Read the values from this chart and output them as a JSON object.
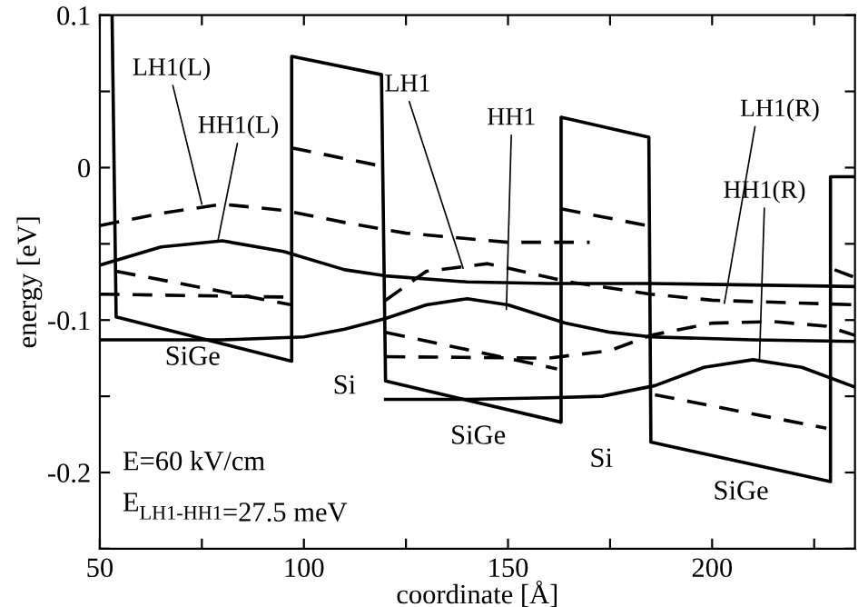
{
  "chart_data": {
    "type": "line",
    "xlabel": "coordinate [Å]",
    "ylabel": "energy [eV]",
    "xlim": [
      50,
      235
    ],
    "ylim": [
      -0.25,
      0.1
    ],
    "xticks": [
      50,
      {
        "value": 75,
        "label": null
      },
      100,
      {
        "value": 125,
        "label": null
      },
      150,
      {
        "value": 175,
        "label": null
      },
      200,
      {
        "value": 225,
        "label": null
      }
    ],
    "yticks": [
      {
        "value": -0.25,
        "label": null
      },
      -0.2,
      {
        "value": -0.15,
        "label": null
      },
      -0.1,
      {
        "value": -0.05,
        "label": null
      },
      0,
      {
        "value": 0.05,
        "label": null
      },
      0.1
    ],
    "grid": false,
    "legend": false,
    "marker": "none",
    "series": [
      {
        "color": "#000000",
        "line_style": "solid",
        "x": [
          53,
          54,
          97,
          97,
          119,
          120,
          163,
          163,
          184.5,
          185,
          229,
          229,
          235
        ],
        "values": [
          0.1,
          -0.098,
          -0.127,
          0.073,
          0.061,
          -0.14,
          -0.167,
          0.033,
          0.02,
          -0.18,
          -0.206,
          -0.006,
          -0.006
        ]
      },
      {
        "color": "#000000",
        "line_style": "dashed",
        "x": [
          54,
          97
        ],
        "values": [
          -0.068,
          -0.09
        ]
      },
      {
        "color": "#000000",
        "line_style": "dashed",
        "x": [
          97,
          119
        ],
        "values": [
          0.013,
          0.001
        ]
      },
      {
        "color": "#000000",
        "line_style": "dashed",
        "x": [
          120,
          162
        ],
        "values": [
          -0.108,
          -0.132
        ]
      },
      {
        "color": "#000000",
        "line_style": "dashed",
        "x": [
          163,
          184
        ],
        "values": [
          -0.027,
          -0.038
        ]
      },
      {
        "color": "#000000",
        "line_style": "dashed",
        "x": [
          186,
          228
        ],
        "values": [
          -0.149,
          -0.171
        ]
      },
      {
        "color": "#000000",
        "line_style": "dashed",
        "x": [
          230,
          235
        ],
        "values": [
          -0.067,
          -0.072
        ]
      },
      {
        "color": "#000000",
        "line_style": "solid",
        "x": [
          50,
          65,
          80,
          95,
          110,
          120,
          140,
          160,
          185,
          210,
          235
        ],
        "values": [
          -0.064,
          -0.052,
          -0.048,
          -0.055,
          -0.067,
          -0.071,
          -0.075,
          -0.076,
          -0.076,
          -0.077,
          -0.078
        ]
      },
      {
        "color": "#000000",
        "line_style": "solid",
        "x": [
          50,
          80,
          100,
          110,
          120,
          130,
          140,
          150,
          164,
          175,
          185,
          210,
          235
        ],
        "values": [
          -0.113,
          -0.113,
          -0.111,
          -0.106,
          -0.099,
          -0.09,
          -0.086,
          -0.09,
          -0.102,
          -0.108,
          -0.111,
          -0.113,
          -0.114
        ]
      },
      {
        "color": "#000000",
        "line_style": "solid",
        "x": [
          120,
          140,
          160,
          173,
          186,
          198,
          210,
          222,
          235
        ],
        "values": [
          -0.152,
          -0.152,
          -0.151,
          -0.15,
          -0.143,
          -0.131,
          -0.126,
          -0.131,
          -0.144
        ]
      },
      {
        "color": "#000000",
        "line_style": "dashed",
        "x": [
          50,
          65,
          80,
          95,
          110,
          125,
          150,
          170
        ],
        "values": [
          -0.038,
          -0.03,
          -0.024,
          -0.028,
          -0.036,
          -0.043,
          -0.049,
          -0.049
        ]
      },
      {
        "color": "#000000",
        "line_style": "dashed",
        "x": [
          120,
          130,
          145,
          165,
          185,
          200,
          235
        ],
        "values": [
          -0.087,
          -0.068,
          -0.063,
          -0.075,
          -0.083,
          -0.087,
          -0.09
        ]
      },
      {
        "color": "#000000",
        "line_style": "dashed",
        "x": [
          50,
          97
        ],
        "values": [
          -0.083,
          -0.085
        ]
      },
      {
        "color": "#000000",
        "line_style": "dashed",
        "x": [
          120,
          160,
          175,
          185,
          200,
          215,
          228,
          235
        ],
        "values": [
          -0.124,
          -0.125,
          -0.12,
          -0.11,
          -0.102,
          -0.101,
          -0.104,
          -0.11
        ]
      }
    ],
    "annotations": [
      {
        "text": "LH1(L)",
        "x": 75,
        "y": -0.024
      },
      {
        "text": "HH1(L)",
        "x": 79,
        "y": -0.047
      },
      {
        "text": "LH1",
        "x": 139,
        "y": -0.066
      },
      {
        "text": "HH1",
        "x": 149.6,
        "y": -0.093
      },
      {
        "text": "LH1(R)",
        "x": 203,
        "y": -0.089
      },
      {
        "text": "HH1(R)",
        "x": 211.6,
        "y": -0.126
      },
      "SiGe",
      "Si",
      "SiGe",
      "Si",
      "SiGe",
      "E=60 kV/cm",
      "E$_{LH1-HH1}$=27.5 meV"
    ]
  }
}
